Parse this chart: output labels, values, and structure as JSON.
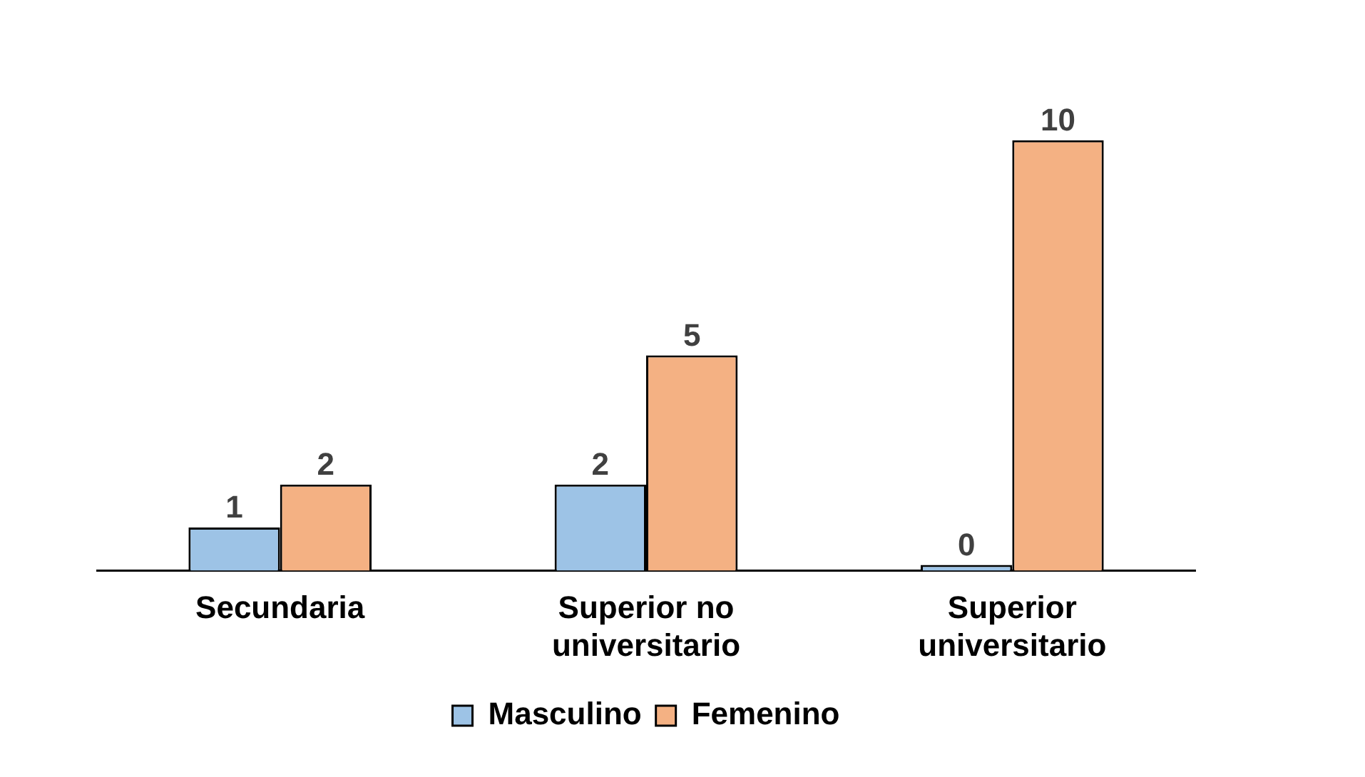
{
  "chart_data": {
    "type": "bar",
    "categories": [
      "Secundaria",
      "Superior no universitario",
      "Superior universitario"
    ],
    "series": [
      {
        "name": "Masculino",
        "color": "#9dc3e6",
        "values": [
          1,
          2,
          0
        ]
      },
      {
        "name": "Femenino",
        "color": "#f4b183",
        "values": [
          2,
          5,
          10
        ]
      }
    ],
    "data_labels": true,
    "legend": "bottom",
    "grid": false
  }
}
